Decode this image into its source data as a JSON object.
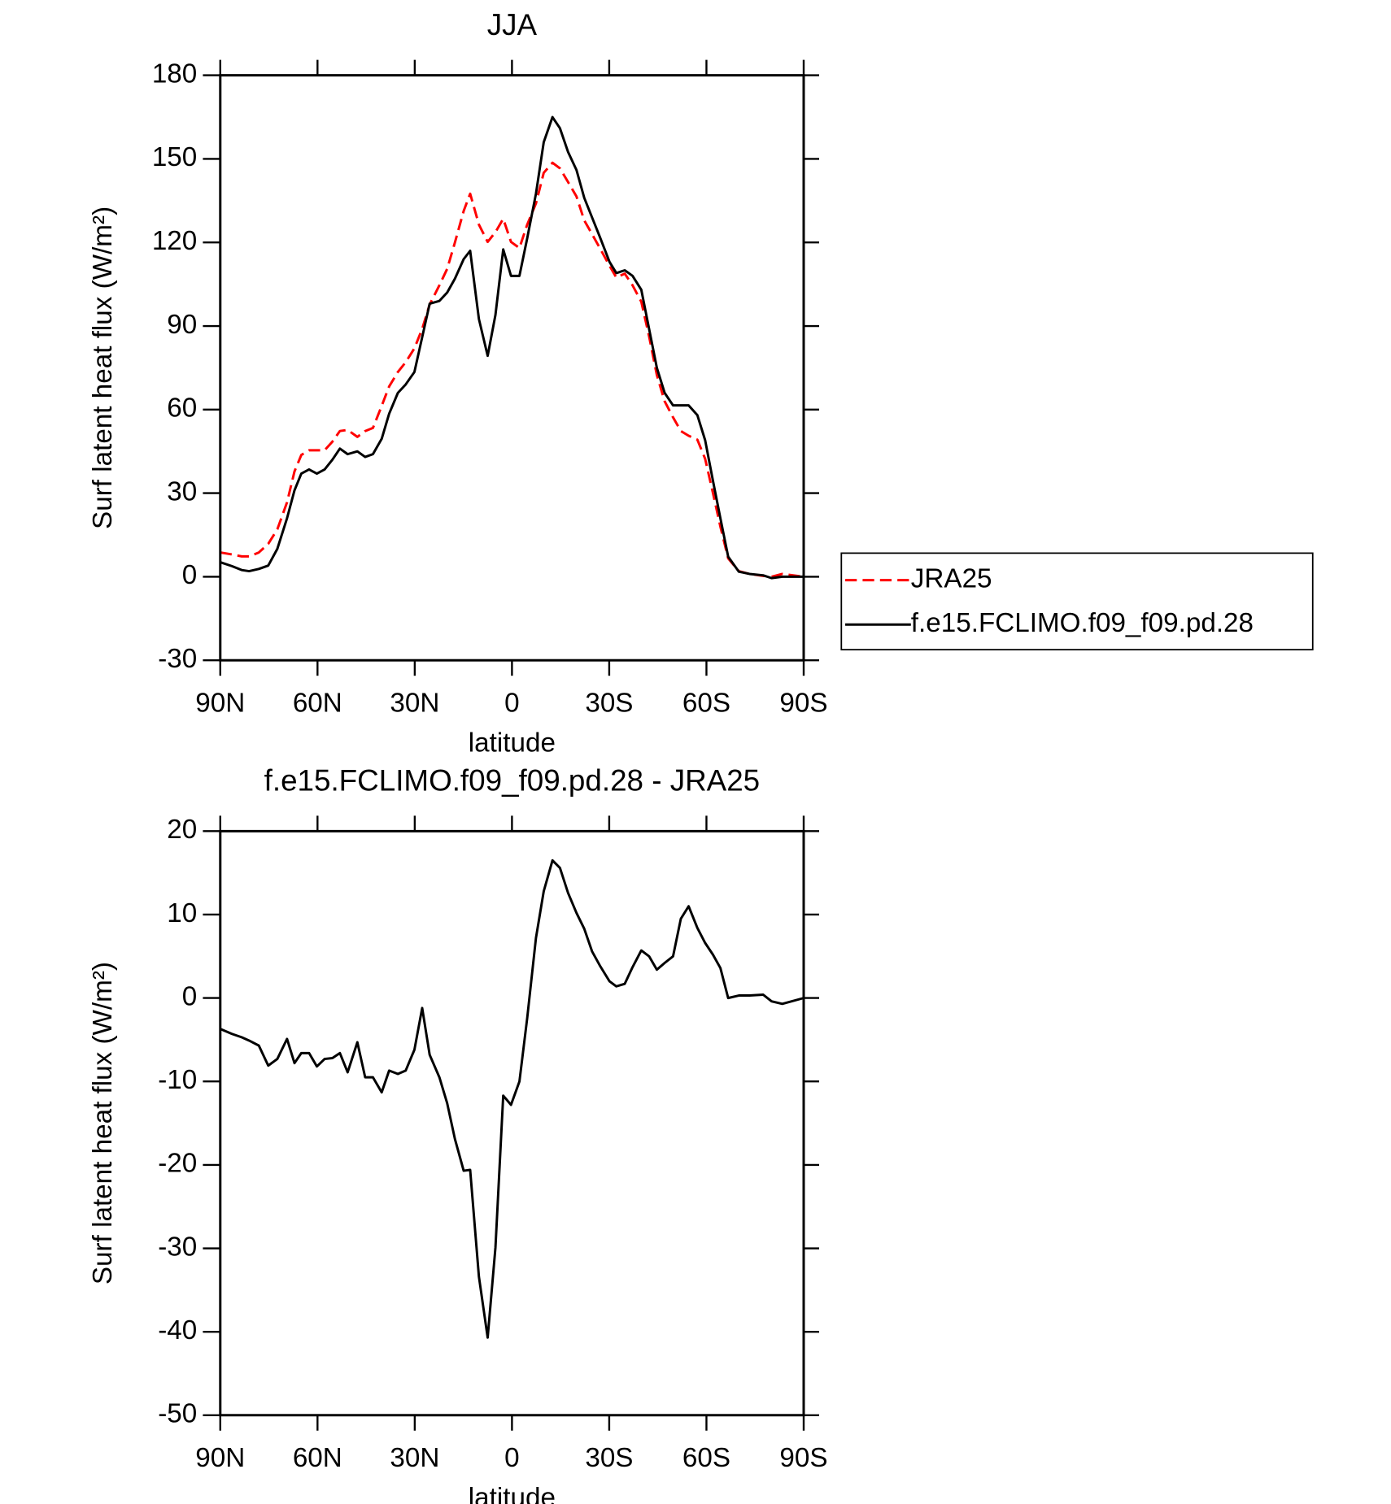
{
  "chart_data": [
    {
      "type": "line",
      "title": "JJA",
      "xlabel": "latitude",
      "ylabel": "Surf latent heat flux (W/m²)",
      "x": [
        90,
        86.4,
        83.4,
        81.1,
        78.1,
        75.2,
        72.4,
        69.4,
        67.1,
        65.0,
        62.6,
        60.2,
        57.8,
        55.4,
        53.1,
        50.7,
        47.7,
        45.3,
        42.9,
        40.2,
        37.9,
        35.2,
        32.8,
        30.1,
        27.7,
        25.4,
        22.4,
        20.0,
        17.6,
        14.9,
        12.9,
        10.2,
        7.5,
        5.1,
        2.7,
        0.3,
        -2.3,
        -4.7,
        -7.4,
        -9.8,
        -12.5,
        -14.8,
        -17.3,
        -19.9,
        -22.3,
        -24.7,
        -27.1,
        -30.1,
        -32.2,
        -34.8,
        -37.2,
        -39.9,
        -42.3,
        -44.7,
        -47.1,
        -49.7,
        -52.1,
        -54.5,
        -57.2,
        -59.6,
        -62.0,
        -64.3,
        -66.7,
        -70.0,
        -73.3,
        -77.5,
        -80.1,
        -83.4,
        -90
      ],
      "series": [
        {
          "name": "JRA25",
          "color": "#ff0000",
          "dash": true,
          "values": [
            8.7,
            8,
            7.3,
            7.3,
            8.7,
            11.8,
            17,
            26.7,
            37.8,
            43.7,
            45.4,
            45.4,
            45.4,
            48.5,
            52.3,
            52.7,
            50.2,
            52.3,
            53.4,
            61.3,
            68.3,
            73.5,
            77,
            82,
            89,
            97.7,
            104.6,
            110.5,
            120,
            131.3,
            137.5,
            126.4,
            120.2,
            123.7,
            128.5,
            120.2,
            118,
            126.4,
            134,
            145,
            148.6,
            146.6,
            141.7,
            136.5,
            127.9,
            123,
            118,
            111.6,
            107.4,
            108.8,
            104.6,
            98.7,
            86.3,
            72.4,
            63,
            57.2,
            52.3,
            50.6,
            49.2,
            42.3,
            30.1,
            18,
            6.6,
            2,
            1,
            0.3,
            0,
            1,
            0
          ]
        },
        {
          "name": "f.e15.FCLIMO.f09_f09.pd.28",
          "color": "#000000",
          "dash": false,
          "values": [
            5.2,
            3.8,
            2.4,
            2,
            2.8,
            4,
            10,
            21,
            31,
            37,
            38.5,
            37,
            38.5,
            42,
            46,
            44,
            45,
            43,
            44,
            49.5,
            58.5,
            66,
            69,
            73.5,
            86,
            98,
            99,
            102,
            107,
            114,
            117,
            92.5,
            79.3,
            94,
            117.5,
            108,
            108,
            121.5,
            137.5,
            156,
            165,
            161,
            152.5,
            146,
            136,
            129,
            122,
            113,
            109,
            110,
            108,
            103,
            89,
            75,
            66,
            61.5,
            61.5,
            61.5,
            58,
            49,
            34.5,
            21,
            7.2,
            1.8,
            1,
            0.5,
            -0.5,
            0,
            0
          ]
        }
      ],
      "xlim": [
        90,
        -90
      ],
      "xticks": [
        {
          "value": 90,
          "label": "90N"
        },
        {
          "value": 60,
          "label": "60N"
        },
        {
          "value": 30,
          "label": "30N"
        },
        0,
        {
          "value": -30,
          "label": "30S"
        },
        {
          "value": -60,
          "label": "60S"
        },
        {
          "value": -90,
          "label": "90S"
        }
      ],
      "ylim": [
        -30,
        180
      ],
      "yticks": [
        -30,
        0,
        30,
        60,
        90,
        120,
        150,
        180
      ],
      "legend": "right"
    },
    {
      "type": "line",
      "title": "f.e15.FCLIMO.f09_f09.pd.28 - JRA25",
      "xlabel": "latitude",
      "ylabel": "Surf latent heat flux (W/m²)",
      "x": [
        90,
        86.4,
        83.4,
        81.1,
        78.1,
        75.2,
        72.4,
        69.4,
        67.1,
        65.0,
        62.6,
        60.2,
        57.8,
        55.4,
        53.1,
        50.7,
        47.7,
        45.3,
        42.9,
        40.2,
        37.9,
        35.2,
        32.8,
        30.1,
        27.7,
        25.4,
        22.4,
        20.0,
        17.6,
        14.9,
        12.9,
        10.2,
        7.5,
        5.1,
        2.7,
        0.3,
        -2.3,
        -4.7,
        -7.4,
        -9.8,
        -12.5,
        -14.8,
        -17.3,
        -19.9,
        -22.3,
        -24.7,
        -27.1,
        -30.1,
        -32.2,
        -34.8,
        -37.2,
        -39.9,
        -42.3,
        -44.7,
        -47.1,
        -49.7,
        -52.1,
        -54.5,
        -57.2,
        -59.6,
        -62.0,
        -64.3,
        -66.7,
        -70.0,
        -73.3,
        -77.5,
        -80.1,
        -83.4,
        -90
      ],
      "values": [
        -3.7,
        -4.3,
        -4.7,
        -5.1,
        -5.7,
        -8.1,
        -7.3,
        -4.9,
        -7.8,
        -6.6,
        -6.6,
        -8.2,
        -7.3,
        -7.2,
        -6.6,
        -8.9,
        -5.3,
        -9.5,
        -9.5,
        -11.3,
        -8.7,
        -9.1,
        -8.7,
        -6.2,
        -1.2,
        -6.8,
        -9.5,
        -12.6,
        -16.9,
        -20.7,
        -20.6,
        -33.4,
        -40.7,
        -29.9,
        -11.7,
        -12.8,
        -10,
        -2.4,
        7.2,
        12.8,
        16.5,
        15.6,
        12.6,
        10.2,
        8.3,
        5.6,
        3.9,
        2,
        1.4,
        1.7,
        3.7,
        5.7,
        5,
        3.4,
        4.2,
        5,
        9.5,
        11,
        8.4,
        6.6,
        5.2,
        3.6,
        0,
        0.3,
        0.3,
        0.4,
        -0.4,
        -0.7,
        0
      ],
      "color": "#000000",
      "xlim": [
        90,
        -90
      ],
      "xticks": [
        {
          "value": 90,
          "label": "90N"
        },
        {
          "value": 60,
          "label": "60N"
        },
        {
          "value": 30,
          "label": "30N"
        },
        0,
        {
          "value": -30,
          "label": "30S"
        },
        {
          "value": -60,
          "label": "60S"
        },
        {
          "value": -90,
          "label": "90S"
        }
      ],
      "ylim": [
        -50,
        20
      ],
      "yticks": [
        -50,
        -40,
        -30,
        -20,
        -10,
        0,
        10,
        20
      ]
    }
  ]
}
